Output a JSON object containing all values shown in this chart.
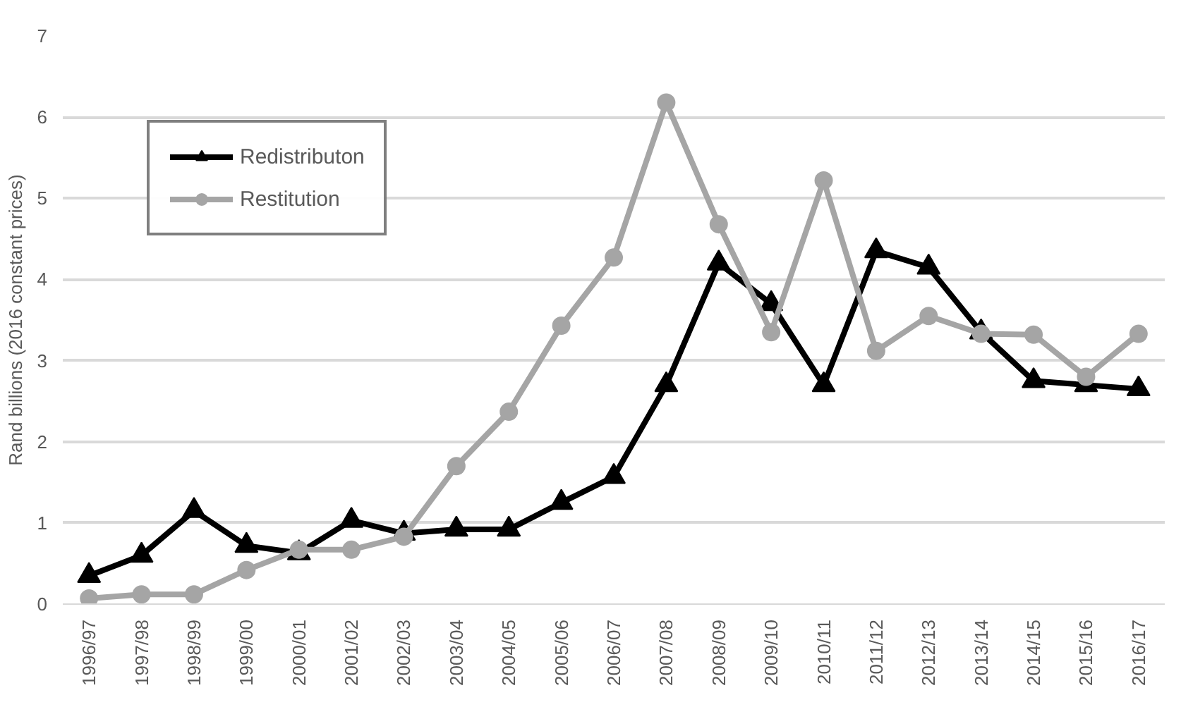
{
  "chart_data": {
    "type": "line",
    "ylabel": "Rand billions (2016 constant prices)",
    "categories": [
      "1996/97",
      "1997/98",
      "1998/99",
      "1999/00",
      "2000/01",
      "2001/02",
      "2002/03",
      "2003/04",
      "2004/05",
      "2005/06",
      "2006/07",
      "2007/08",
      "2008/09",
      "2009/10",
      "2010/11",
      "2011/12",
      "2012/13",
      "2013/14",
      "2014/15",
      "2015/16",
      "2016/17"
    ],
    "series": [
      {
        "name": "Redistributon",
        "color": "#000000",
        "marker": "triangle",
        "values": [
          0.35,
          0.6,
          1.15,
          0.72,
          0.63,
          1.03,
          0.87,
          0.92,
          0.92,
          1.25,
          1.57,
          2.7,
          4.2,
          3.7,
          2.7,
          4.35,
          4.15,
          3.35,
          2.75,
          2.7,
          2.65
        ]
      },
      {
        "name": "Restitution",
        "color": "#a5a5a5",
        "marker": "circle",
        "values": [
          0.07,
          0.12,
          0.12,
          0.42,
          0.67,
          0.67,
          0.83,
          1.7,
          2.37,
          3.43,
          4.27,
          6.18,
          4.68,
          3.35,
          5.22,
          3.12,
          3.55,
          3.33,
          3.32,
          2.8,
          3.33
        ]
      }
    ],
    "ylim": [
      0,
      7
    ],
    "yticks": [
      0,
      1,
      2,
      3,
      4,
      5,
      6,
      7
    ],
    "grid": "y",
    "legend": "top left"
  }
}
